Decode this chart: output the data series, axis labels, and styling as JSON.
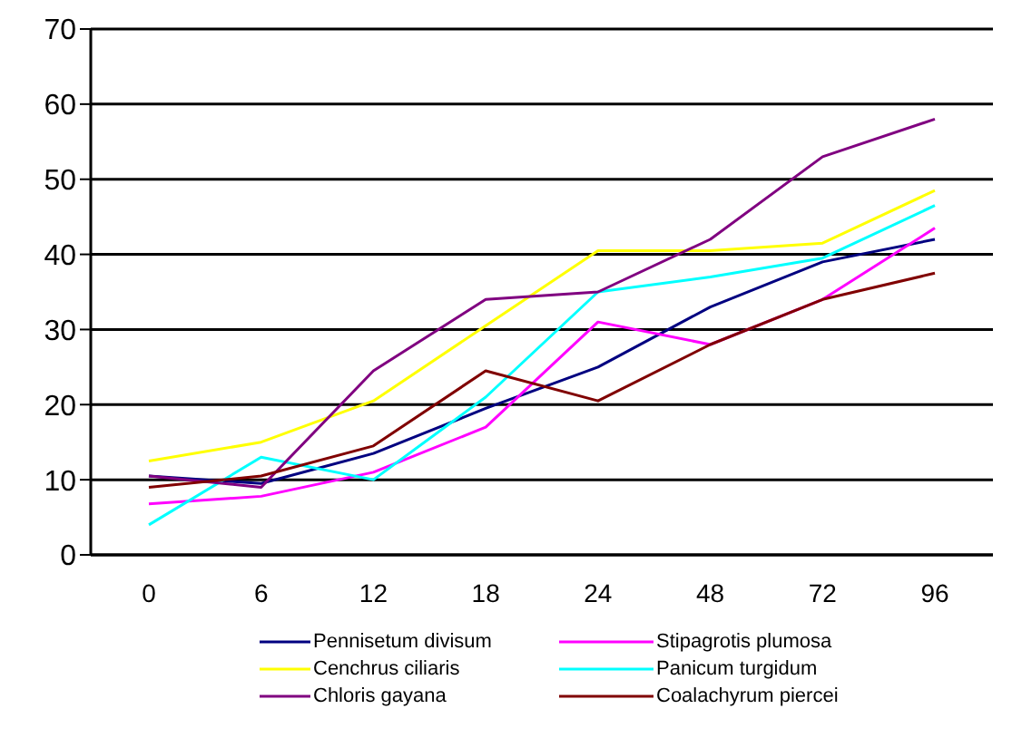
{
  "chart_data": {
    "type": "line",
    "categories": [
      "0",
      "6",
      "12",
      "18",
      "24",
      "48",
      "72",
      "96"
    ],
    "series": [
      {
        "name": "Pennisetum divisum",
        "color": "#000080",
        "values": [
          10.5,
          9.5,
          13.5,
          19.5,
          25,
          33,
          39,
          42
        ]
      },
      {
        "name": "Stipagrotis plumosa",
        "color": "#ff00ff",
        "values": [
          6.8,
          7.8,
          11,
          17,
          31,
          28,
          34,
          43.5
        ]
      },
      {
        "name": "Cenchrus ciliaris",
        "color": "#ffff00",
        "values": [
          12.5,
          15,
          20.5,
          30.5,
          40.5,
          40.5,
          41.5,
          48.5
        ]
      },
      {
        "name": "Panicum turgidum",
        "color": "#00ffff",
        "values": [
          4,
          13,
          10,
          21,
          35,
          37,
          39.5,
          46.5
        ]
      },
      {
        "name": "Chloris gayana",
        "color": "#800080",
        "values": [
          10.5,
          9,
          24.5,
          34,
          35,
          42,
          53,
          58
        ]
      },
      {
        "name": "Coalachyrum  piercei",
        "color": "#800000",
        "values": [
          9,
          10.5,
          14.5,
          24.5,
          20.5,
          28,
          34,
          37.5
        ]
      }
    ],
    "ylim": [
      0,
      70
    ],
    "yticks": [
      0,
      10,
      20,
      30,
      40,
      50,
      60,
      70
    ],
    "grid": "y",
    "legend": "bottom",
    "marker": "none",
    "line_style": "solid"
  }
}
